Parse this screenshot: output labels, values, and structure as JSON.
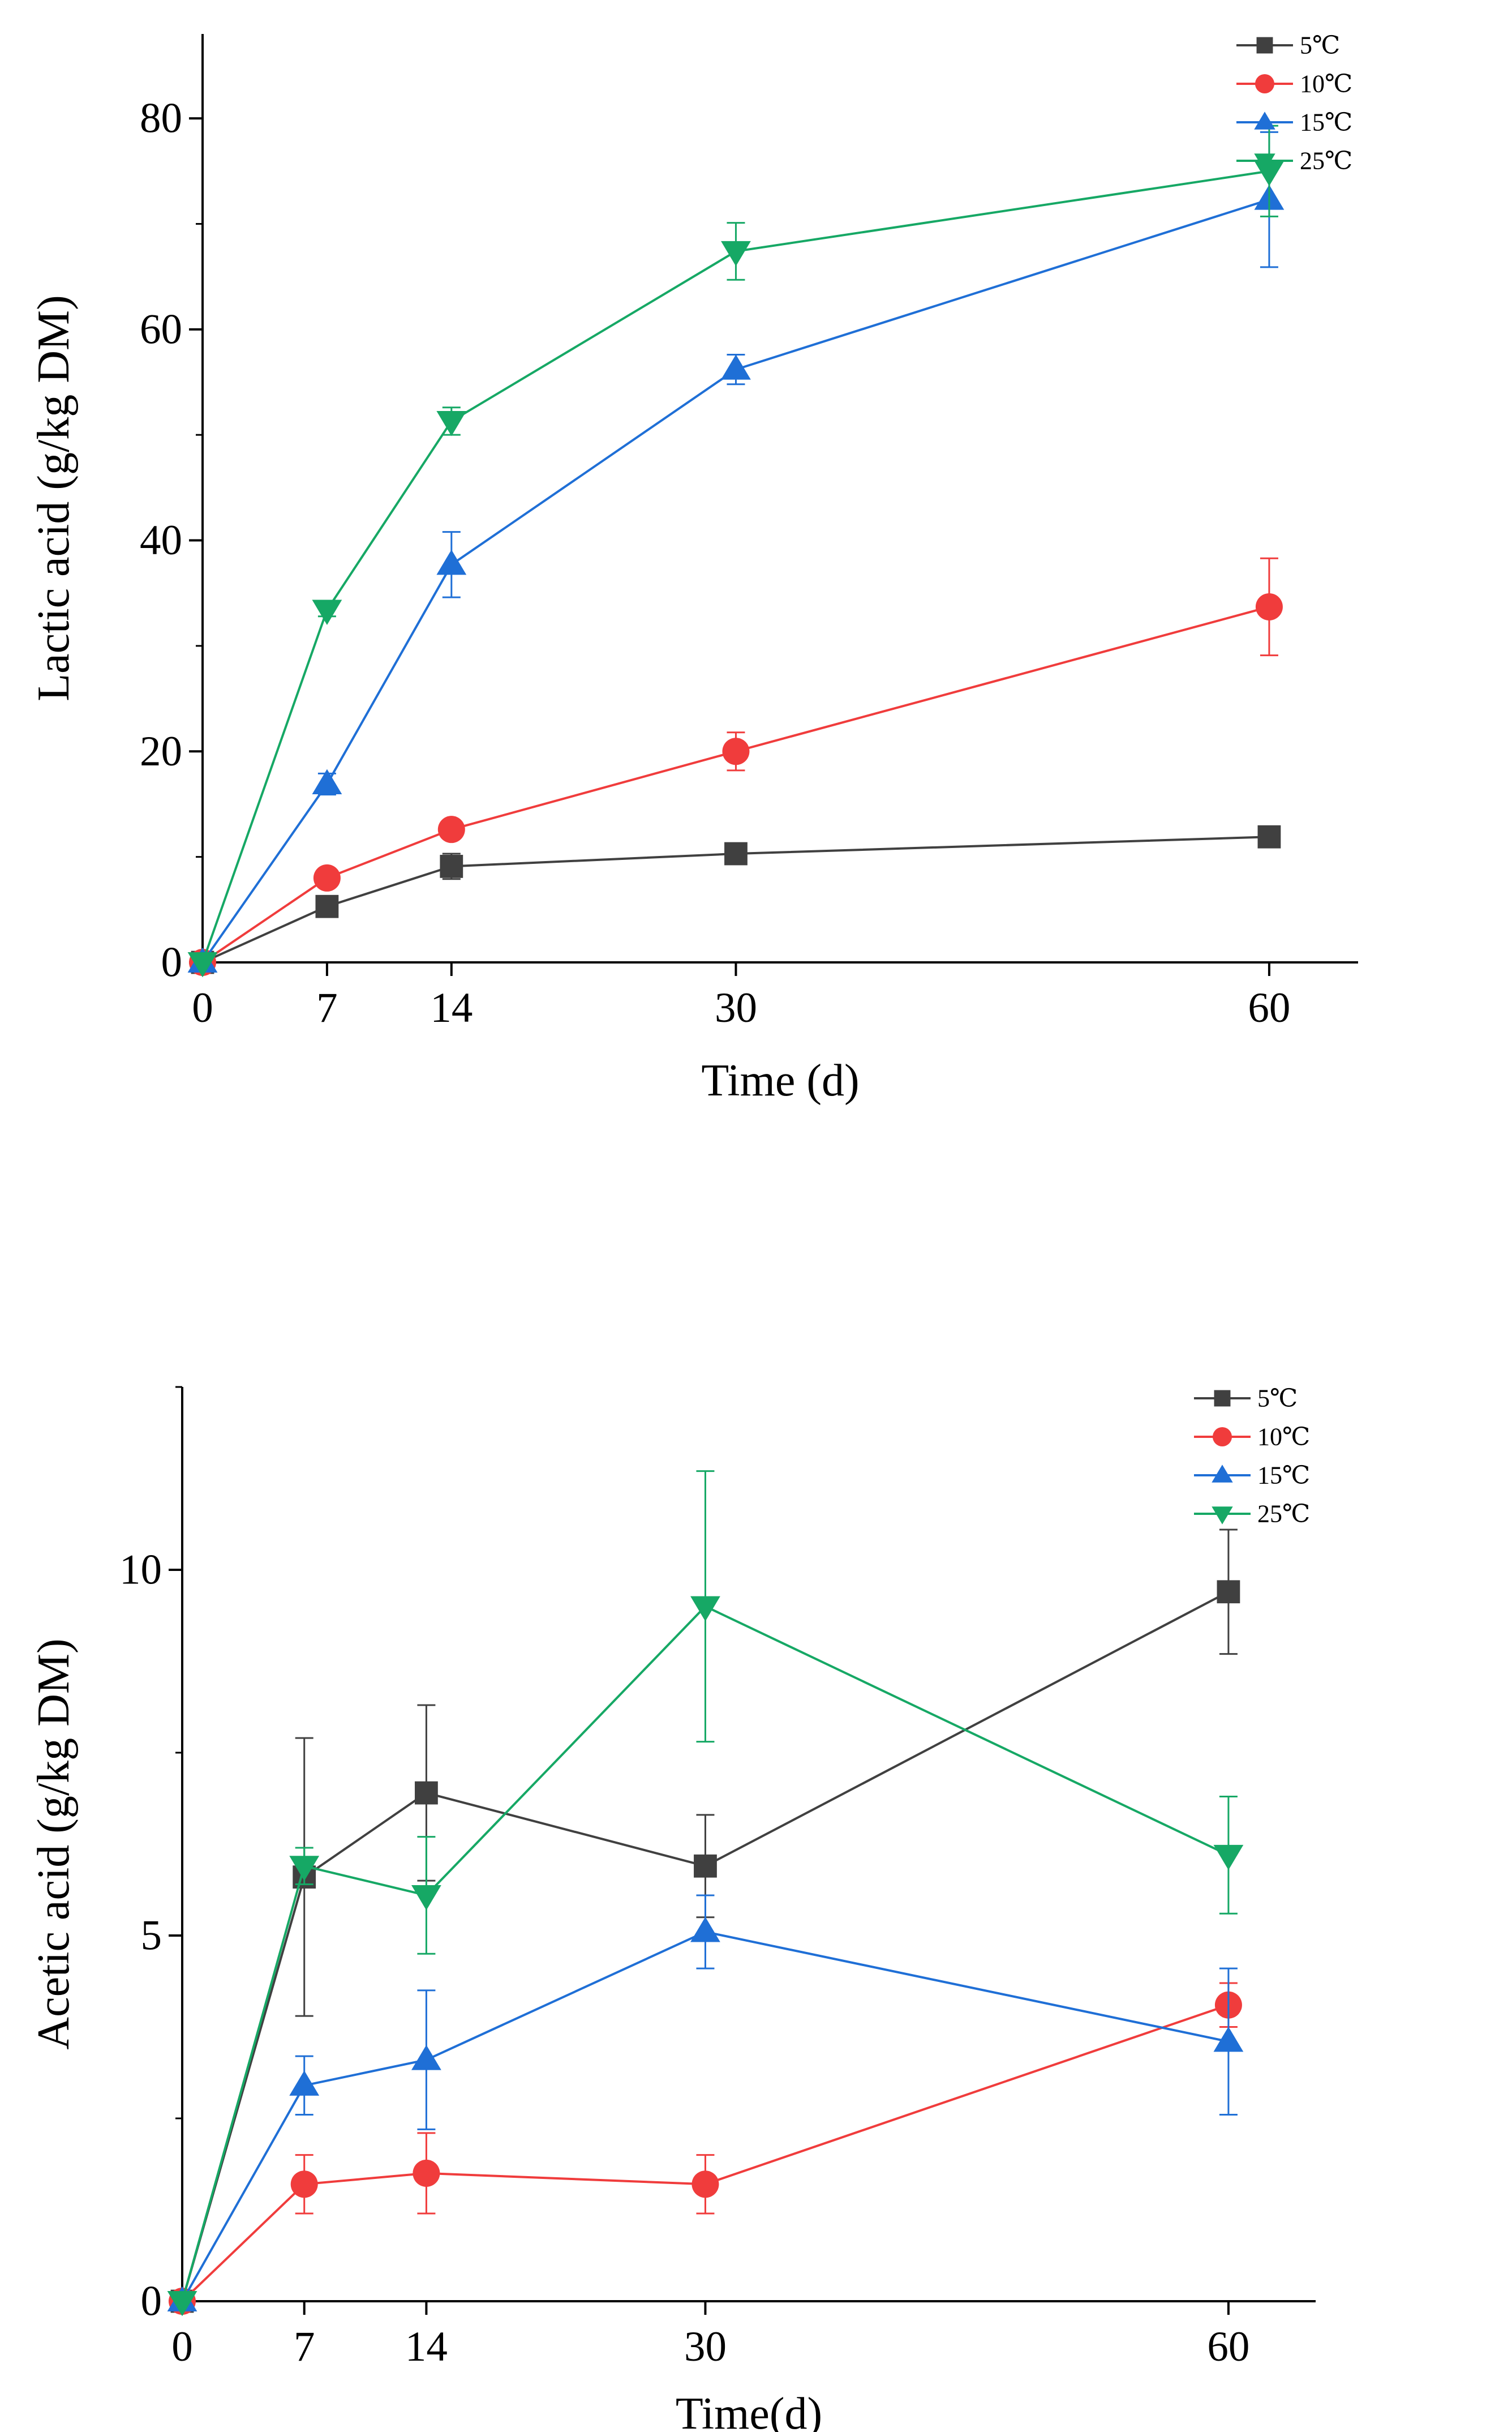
{
  "chart_data": [
    {
      "type": "line",
      "name": "lactic",
      "xlabel": "Time (d)",
      "ylabel": "Lactic acid (g/kg DM)",
      "x": [
        0,
        7,
        14,
        30,
        60
      ],
      "x_tick_labels": [
        "0",
        "7",
        "14",
        "30",
        "60"
      ],
      "xlim": [
        0,
        65
      ],
      "ylim": [
        0,
        88
      ],
      "y_ticks": [
        0,
        20,
        40,
        60,
        80
      ],
      "y_tick_labels": [
        "0",
        "20",
        "40",
        "60",
        "80"
      ],
      "y_minor_step": 10,
      "legend_position": "top-right",
      "series": [
        {
          "name": "5℃",
          "color": "#404040",
          "marker": "square",
          "values": [
            0,
            5.3,
            9.1,
            10.3,
            11.9
          ],
          "errors": [
            0,
            0.6,
            1.2,
            0.6,
            0.6
          ]
        },
        {
          "name": "10℃",
          "color": "#f03c3c",
          "marker": "circle",
          "values": [
            0,
            8.0,
            12.6,
            20.0,
            33.7
          ],
          "errors": [
            0,
            0.6,
            0.8,
            1.8,
            4.6
          ]
        },
        {
          "name": "15℃",
          "color": "#1f6fd6",
          "marker": "triangle-up",
          "values": [
            0,
            16.9,
            37.7,
            56.2,
            72.3
          ],
          "errors": [
            0,
            1.0,
            3.1,
            1.4,
            6.4
          ]
        },
        {
          "name": "25℃",
          "color": "#16a865",
          "marker": "triangle-down",
          "values": [
            0,
            33.4,
            51.3,
            67.4,
            75.0
          ],
          "errors": [
            0,
            0.6,
            1.3,
            2.7,
            4.3
          ]
        }
      ]
    },
    {
      "type": "line",
      "name": "acetic",
      "xlabel": "Time(d)",
      "ylabel": "Acetic acid (g/kg DM)",
      "x": [
        0,
        7,
        14,
        30,
        60
      ],
      "x_tick_labels": [
        "0",
        "7",
        "14",
        "30",
        "60"
      ],
      "xlim": [
        0,
        65
      ],
      "ylim": [
        0,
        12.5
      ],
      "y_ticks": [
        0,
        5,
        10
      ],
      "y_tick_labels": [
        "0",
        "5",
        "10"
      ],
      "y_minor_step": 2.5,
      "legend_position": "top-right",
      "series": [
        {
          "name": "5℃",
          "color": "#404040",
          "marker": "square",
          "values": [
            0,
            5.8,
            6.95,
            5.95,
            9.7
          ],
          "errors": [
            0,
            1.9,
            1.2,
            0.7,
            0.85
          ]
        },
        {
          "name": "10℃",
          "color": "#f03c3c",
          "marker": "circle",
          "values": [
            0,
            1.6,
            1.75,
            1.6,
            4.05
          ],
          "errors": [
            0,
            0.4,
            0.55,
            0.4,
            0.3
          ]
        },
        {
          "name": "15℃",
          "color": "#1f6fd6",
          "marker": "triangle-up",
          "values": [
            0,
            2.95,
            3.3,
            5.05,
            3.55
          ],
          "errors": [
            0,
            0.4,
            0.95,
            0.5,
            1.0
          ]
        },
        {
          "name": "25℃",
          "color": "#16a865",
          "marker": "triangle-down",
          "values": [
            0,
            5.95,
            5.55,
            9.5,
            6.1
          ],
          "errors": [
            0,
            0.25,
            0.8,
            1.85,
            0.8
          ]
        }
      ]
    }
  ]
}
